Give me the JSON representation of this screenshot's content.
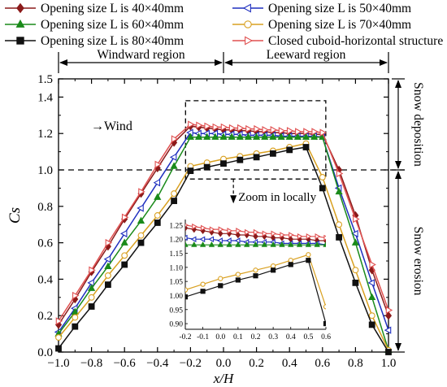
{
  "chart_data": {
    "type": "line",
    "xlabel": "x/H",
    "ylabel": "Cs",
    "xlim": [
      -1.0,
      1.0
    ],
    "ylim": [
      0.0,
      1.5
    ],
    "x_ticks": [
      "−1.0",
      "−0.8",
      "−0.6",
      "−0.4",
      "−0.2",
      "0.0",
      "0.2",
      "0.4",
      "0.6",
      "0.8",
      "1.0"
    ],
    "y_ticks": [
      "0.0",
      "0.2",
      "0.4",
      "0.6",
      "0.8",
      "1.0",
      "1.2",
      "1.4",
      "1.5"
    ],
    "series": [
      {
        "name": "Opening size L is 40×40mm",
        "color": "#8b1a1a",
        "marker": "diamond",
        "x": [
          -1.0,
          -0.9,
          -0.8,
          -0.7,
          -0.6,
          -0.5,
          -0.4,
          -0.3,
          -0.2,
          -0.15,
          -0.1,
          -0.05,
          0.0,
          0.05,
          0.1,
          0.15,
          0.2,
          0.25,
          0.3,
          0.35,
          0.4,
          0.45,
          0.5,
          0.55,
          0.6,
          0.7,
          0.8,
          0.9,
          1.0
        ],
        "y": [
          0.15,
          0.29,
          0.44,
          0.58,
          0.73,
          0.87,
          1.01,
          1.15,
          1.24,
          1.235,
          1.23,
          1.225,
          1.22,
          1.22,
          1.215,
          1.215,
          1.21,
          1.21,
          1.205,
          1.205,
          1.2,
          1.2,
          1.2,
          1.195,
          1.195,
          1.0,
          0.75,
          0.45,
          0.2
        ]
      },
      {
        "name": "Opening size L is 50×40mm",
        "color": "#1f2fbf",
        "marker": "tri-left",
        "x": [
          -1.0,
          -0.9,
          -0.8,
          -0.7,
          -0.6,
          -0.5,
          -0.4,
          -0.3,
          -0.2,
          -0.15,
          -0.1,
          -0.05,
          0.0,
          0.05,
          0.1,
          0.15,
          0.2,
          0.25,
          0.3,
          0.35,
          0.4,
          0.45,
          0.5,
          0.55,
          0.6,
          0.7,
          0.8,
          0.9,
          1.0
        ],
        "y": [
          0.11,
          0.24,
          0.38,
          0.51,
          0.65,
          0.79,
          0.93,
          1.07,
          1.205,
          1.2,
          1.2,
          1.2,
          1.195,
          1.195,
          1.195,
          1.19,
          1.19,
          1.19,
          1.19,
          1.185,
          1.185,
          1.185,
          1.185,
          1.185,
          1.18,
          0.9,
          0.65,
          0.38,
          0.12
        ]
      },
      {
        "name": "Opening size L is 60×40mm",
        "color": "#1a8a1a",
        "marker": "triangle",
        "x": [
          -1.0,
          -0.9,
          -0.8,
          -0.7,
          -0.6,
          -0.5,
          -0.4,
          -0.3,
          -0.2,
          -0.15,
          -0.1,
          -0.05,
          0.0,
          0.05,
          0.1,
          0.15,
          0.2,
          0.25,
          0.3,
          0.35,
          0.4,
          0.45,
          0.5,
          0.55,
          0.6,
          0.7,
          0.8,
          0.9,
          1.0
        ],
        "y": [
          0.1,
          0.22,
          0.35,
          0.47,
          0.6,
          0.72,
          0.85,
          1.02,
          1.18,
          1.18,
          1.18,
          1.18,
          1.18,
          1.18,
          1.18,
          1.18,
          1.18,
          1.18,
          1.18,
          1.18,
          1.18,
          1.18,
          1.18,
          1.18,
          1.18,
          0.88,
          0.6,
          0.3,
          0.01
        ]
      },
      {
        "name": "Opening size L is 70×40mm",
        "color": "#d9a020",
        "marker": "circle",
        "x": [
          -1.0,
          -0.9,
          -0.8,
          -0.7,
          -0.6,
          -0.5,
          -0.4,
          -0.3,
          -0.2,
          -0.1,
          0.0,
          0.1,
          0.2,
          0.3,
          0.4,
          0.5,
          0.6,
          0.7,
          0.8,
          0.9,
          1.0
        ],
        "y": [
          0.08,
          0.19,
          0.3,
          0.42,
          0.53,
          0.64,
          0.75,
          0.87,
          1.02,
          1.04,
          1.06,
          1.075,
          1.09,
          1.105,
          1.125,
          1.145,
          0.96,
          0.7,
          0.45,
          0.2,
          0.01
        ]
      },
      {
        "name": "Opening size L is 80×40mm",
        "color": "#111111",
        "marker": "square",
        "x": [
          -1.0,
          -0.9,
          -0.8,
          -0.7,
          -0.6,
          -0.5,
          -0.4,
          -0.3,
          -0.2,
          -0.1,
          0.0,
          0.1,
          0.2,
          0.3,
          0.4,
          0.5,
          0.6,
          0.7,
          0.8,
          0.9,
          1.0
        ],
        "y": [
          0.02,
          0.14,
          0.25,
          0.37,
          0.48,
          0.6,
          0.71,
          0.83,
          0.995,
          1.015,
          1.035,
          1.055,
          1.07,
          1.09,
          1.11,
          1.125,
          0.9,
          0.63,
          0.38,
          0.15,
          0.0
        ]
      },
      {
        "name": "Closed cuboid-horizontal structure",
        "color": "#e05050",
        "marker": "tri-right",
        "x": [
          -1.0,
          -0.9,
          -0.8,
          -0.7,
          -0.6,
          -0.5,
          -0.4,
          -0.3,
          -0.2,
          -0.15,
          -0.1,
          -0.05,
          0.0,
          0.05,
          0.1,
          0.15,
          0.2,
          0.25,
          0.3,
          0.35,
          0.4,
          0.45,
          0.5,
          0.55,
          0.6,
          0.7,
          0.8,
          0.9,
          1.0
        ],
        "y": [
          0.17,
          0.31,
          0.45,
          0.6,
          0.74,
          0.88,
          1.03,
          1.17,
          1.25,
          1.245,
          1.24,
          1.235,
          1.235,
          1.23,
          1.23,
          1.225,
          1.225,
          1.22,
          1.22,
          1.215,
          1.215,
          1.21,
          1.21,
          1.21,
          1.205,
          0.98,
          0.73,
          0.48,
          0.23
        ]
      }
    ],
    "reference_line": 1.0,
    "annotations": {
      "windward": "Windward region",
      "leeward": "Leeward region",
      "wind": "→Wind",
      "zoom": "Zoom in locally",
      "deposition": "Snow deposition",
      "erosion": "Snow erosion"
    },
    "inset": {
      "xlim": [
        -0.2,
        0.6
      ],
      "ylim": [
        0.88,
        1.27
      ],
      "x_ticks": [
        "-0.2",
        "-0.1",
        "0.0",
        "0.1",
        "0.2",
        "0.3",
        "0.4",
        "0.5",
        "0.6"
      ],
      "y_ticks": [
        "0.90",
        "0.95",
        "1.00",
        "1.05",
        "1.10",
        "1.15",
        "1.20",
        "1.25"
      ]
    },
    "legend_position": "top",
    "grid": false
  }
}
